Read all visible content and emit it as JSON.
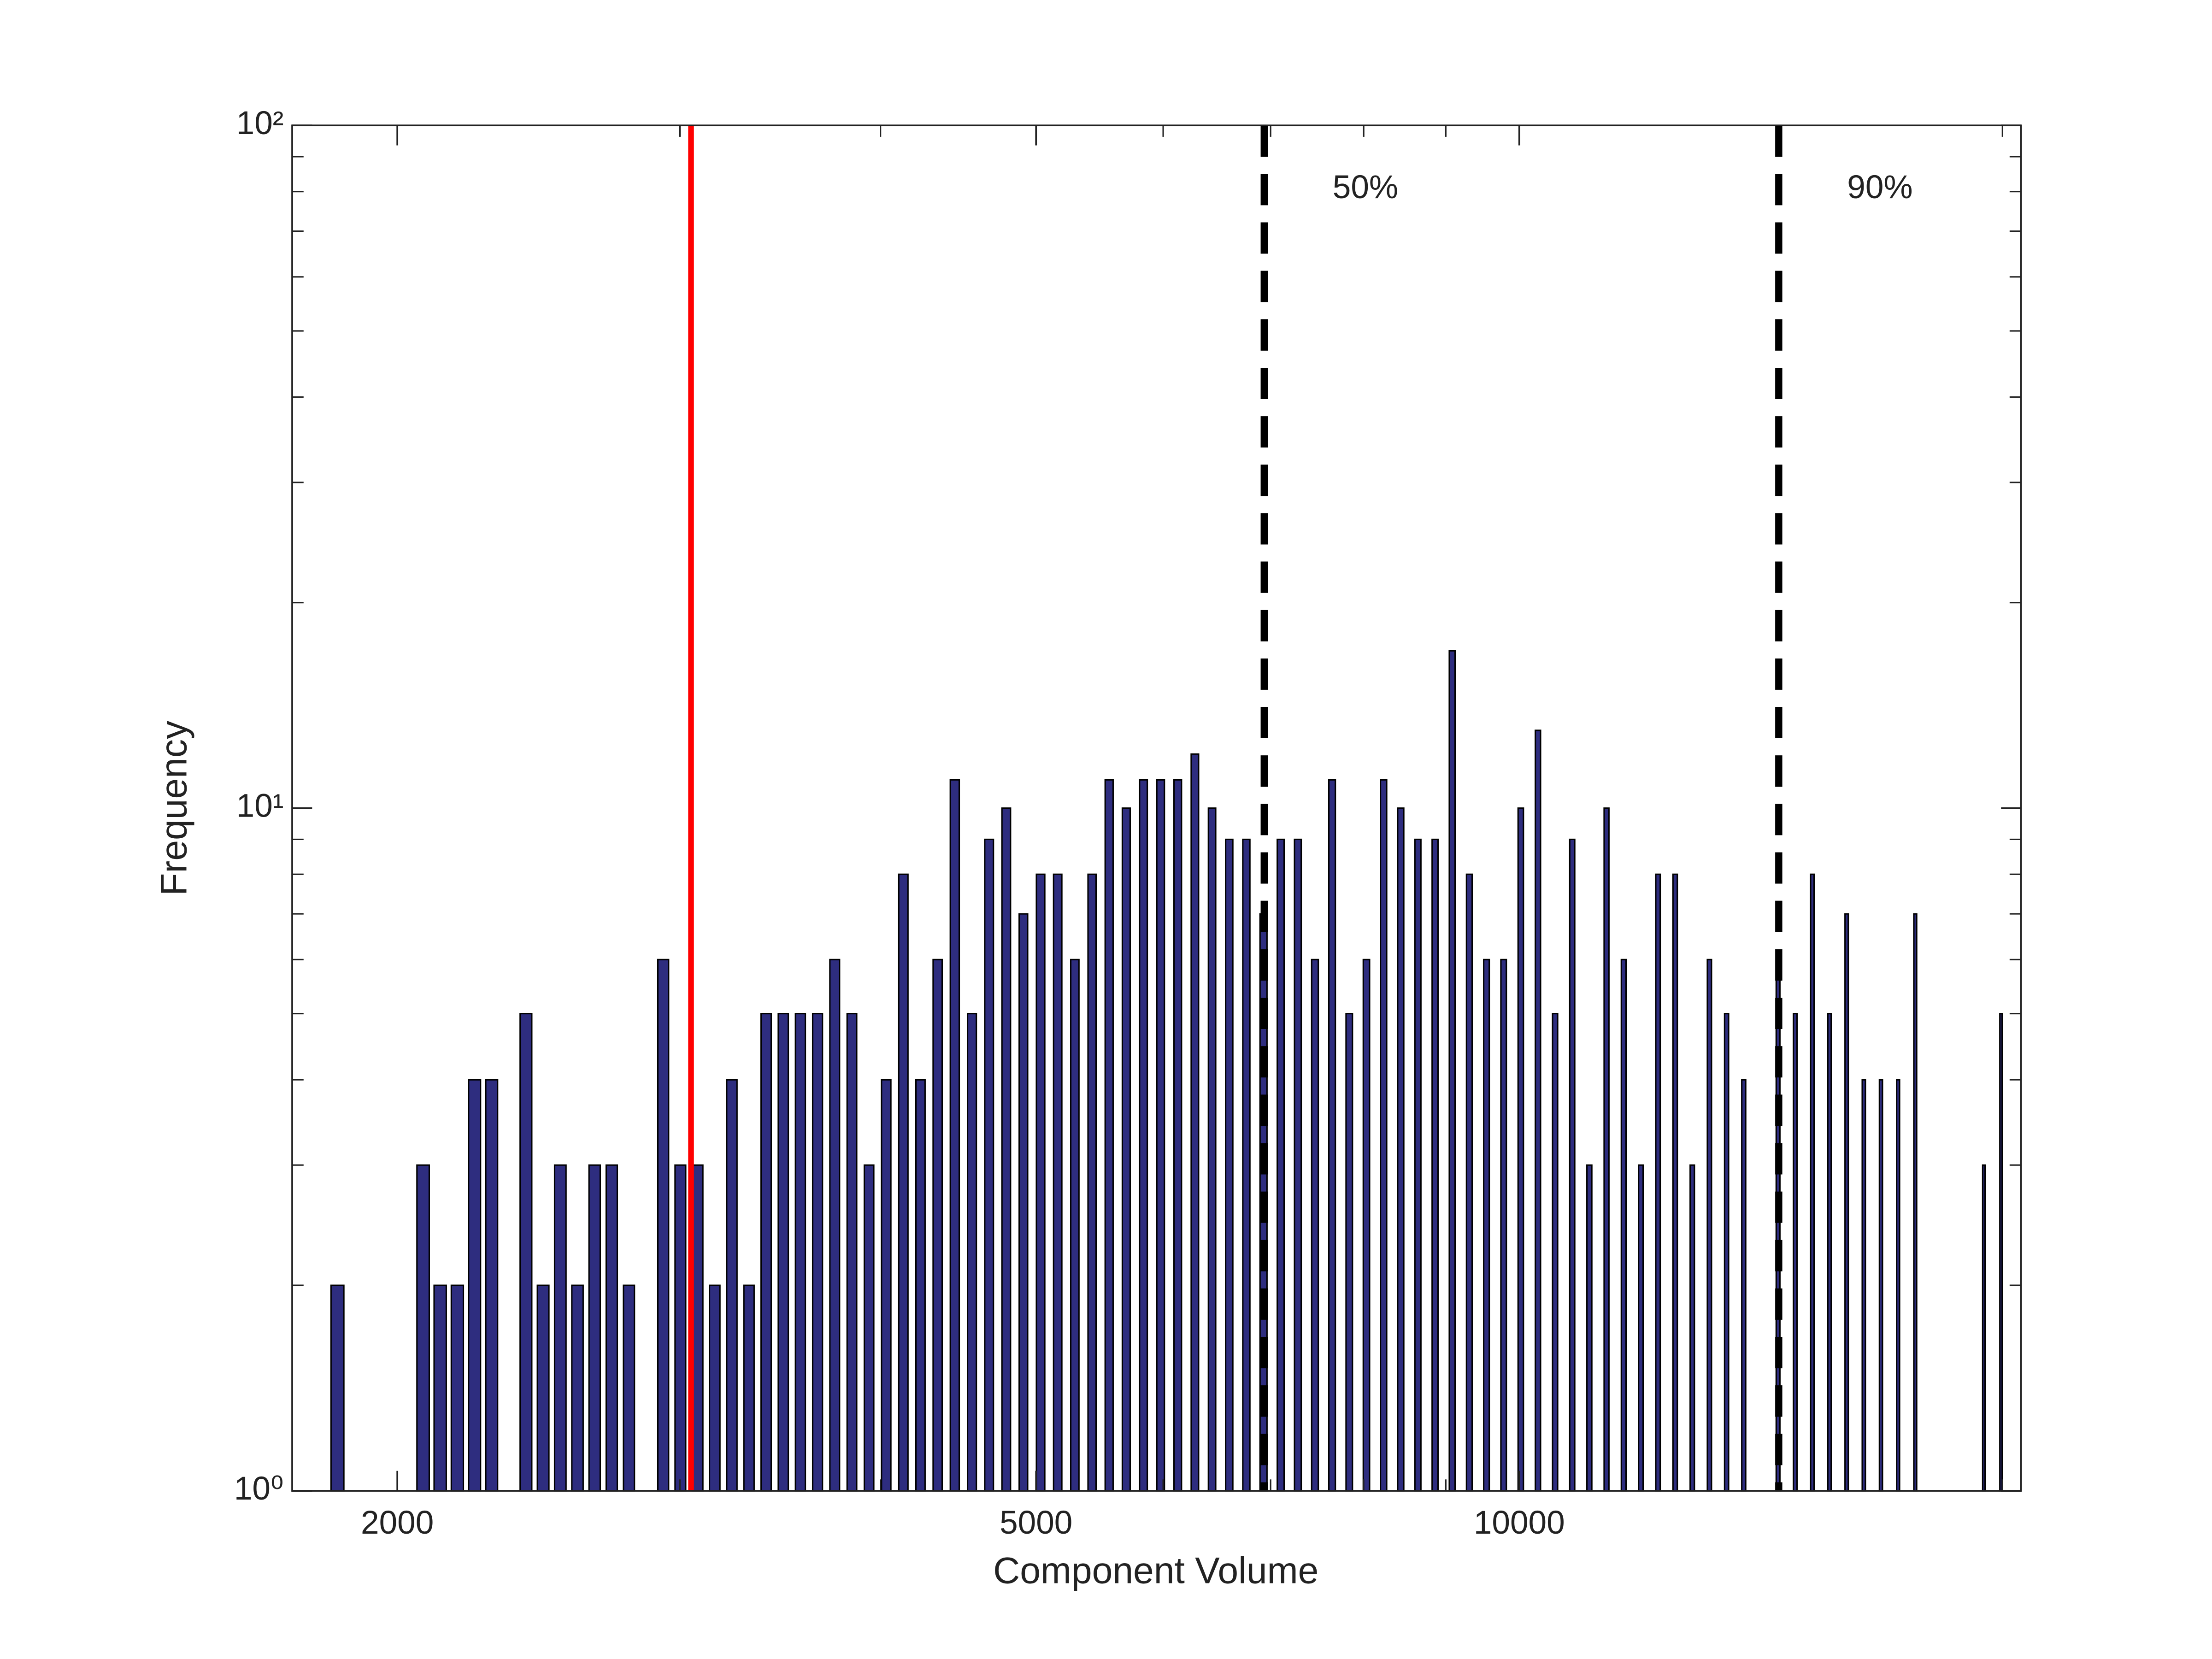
{
  "chart_data": {
    "type": "histogram",
    "xlabel": "Component Volume",
    "ylabel": "Frequency",
    "xscale": "log",
    "yscale": "log",
    "color": "#2e2d7f",
    "xlim": [
      1720,
      20540
    ],
    "ylim": [
      1,
      100
    ],
    "xticks": [
      2000,
      5000,
      10000
    ],
    "xminorticks": [
      3000,
      4000,
      6000,
      7000,
      8000,
      9000,
      20000
    ],
    "yticks": [
      {
        "value": 1,
        "label": "10⁰"
      },
      {
        "value": 10,
        "label": "10¹"
      },
      {
        "value": 100,
        "label": "10²"
      }
    ],
    "yminorticks": [
      2,
      3,
      4,
      5,
      6,
      7,
      8,
      9,
      20,
      30,
      40,
      50,
      60,
      70,
      80,
      90
    ],
    "bins": [
      1813,
      1858,
      1904,
      1952,
      2000,
      2050,
      2101,
      2153,
      2207,
      2262,
      2318,
      2376,
      2435,
      2496,
      2558,
      2622,
      2687,
      2754,
      2823,
      2893,
      2965,
      3039,
      3115,
      3192,
      3272,
      3353,
      3437,
      3522,
      3610,
      3700,
      3792,
      3887,
      3983,
      4083,
      4184,
      4289,
      4395,
      4505,
      4617,
      4732,
      4850,
      4971,
      5095,
      5221,
      5352,
      5485,
      5621,
      5761,
      5905,
      6052,
      6203,
      6357,
      6516,
      6678,
      6844,
      7015,
      7190,
      7369,
      7552,
      7740,
      7933,
      8131,
      8333,
      8541,
      8754,
      8972,
      9195,
      9424,
      9659,
      9899,
      10146,
      10399,
      10658,
      10923,
      11195,
      11474,
      11760,
      12053,
      12353,
      12661,
      12976,
      13299,
      13631,
      13970,
      14318,
      14675,
      15040,
      15415,
      15799,
      16193,
      16596,
      17009,
      17433,
      17867,
      18312,
      18768,
      19236,
      19715,
      20206
    ],
    "counts": [
      2,
      0,
      0,
      0,
      0,
      3,
      2,
      2,
      4,
      4,
      0,
      5,
      2,
      3,
      2,
      3,
      3,
      2,
      0,
      6,
      3,
      3,
      2,
      4,
      2,
      5,
      5,
      5,
      5,
      6,
      5,
      3,
      4,
      8,
      4,
      6,
      11,
      5,
      9,
      10,
      7,
      8,
      8,
      6,
      8,
      11,
      10,
      11,
      11,
      11,
      12,
      10,
      9,
      9,
      7,
      9,
      9,
      6,
      11,
      5,
      6,
      11,
      10,
      9,
      9,
      17,
      8,
      6,
      6,
      10,
      13,
      5,
      9,
      3,
      10,
      6,
      3,
      8,
      8,
      3,
      6,
      5,
      4,
      0,
      6,
      5,
      8,
      5,
      7,
      4,
      4,
      4,
      7,
      0,
      0,
      0,
      3,
      5
    ],
    "vlines": [
      {
        "x": 3048,
        "color": "#ff0000",
        "style": "solid"
      },
      {
        "x": 6936,
        "color": "#000000",
        "style": "dashed",
        "label": "50%"
      },
      {
        "x": 14510,
        "color": "#000000",
        "style": "dashed",
        "label": "90%"
      }
    ]
  }
}
